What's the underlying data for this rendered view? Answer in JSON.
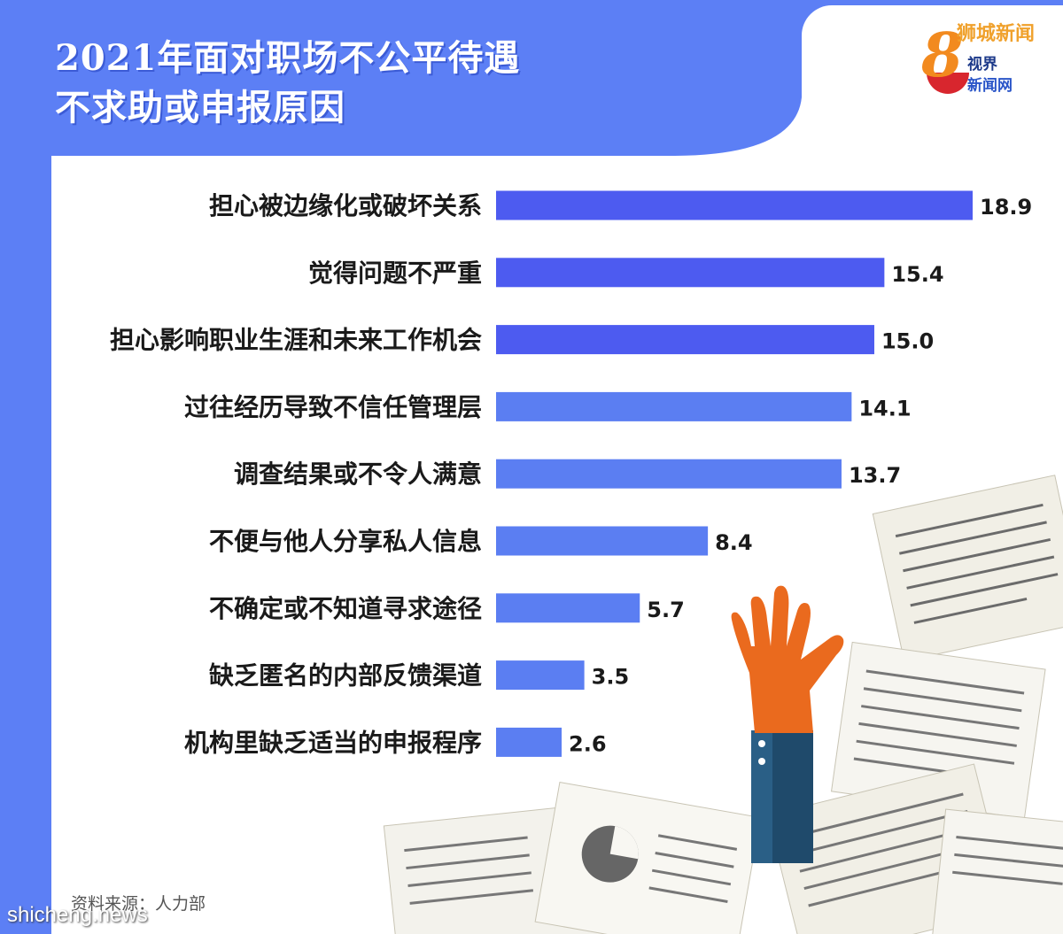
{
  "title_line1": "2021年面对职场不公平待遇",
  "title_line2": "不求助或申报原因",
  "logo": {
    "top_text": "狮城新闻",
    "digit": "8",
    "line1": "视界",
    "line2": "新闻网"
  },
  "source": "资料来源：人力部",
  "watermark": "shicheng.news",
  "colors": {
    "background": "#5c7ff5",
    "bar_dark": "#4d5bf0",
    "bar_light": "#5b7ef2",
    "hand": "#ea6a1e",
    "sleeve": "#1f4a6b"
  },
  "chart_data": {
    "type": "bar",
    "orientation": "horizontal",
    "title": "2021年面对职场不公平待遇 不求助或申报原因",
    "categories": [
      "担心被边缘化或破坏关系",
      "觉得问题不严重",
      "担心影响职业生涯和未来工作机会",
      "过往经历导致不信任管理层",
      "调查结果或不令人满意",
      "不便与他人分享私人信息",
      "不确定或不知道寻求途径",
      "缺乏匿名的内部反馈渠道",
      "机构里缺乏适当的申报程序"
    ],
    "values": [
      18.9,
      15.4,
      15.0,
      14.1,
      13.7,
      8.4,
      5.7,
      3.5,
      2.6
    ],
    "value_labels": [
      "18.9",
      "15.4",
      "15.0",
      "14.1",
      "13.7",
      "8.4",
      "5.7",
      "3.5",
      "2.6"
    ],
    "xlim": [
      0,
      18.9
    ],
    "grid": false,
    "legend": "none"
  }
}
